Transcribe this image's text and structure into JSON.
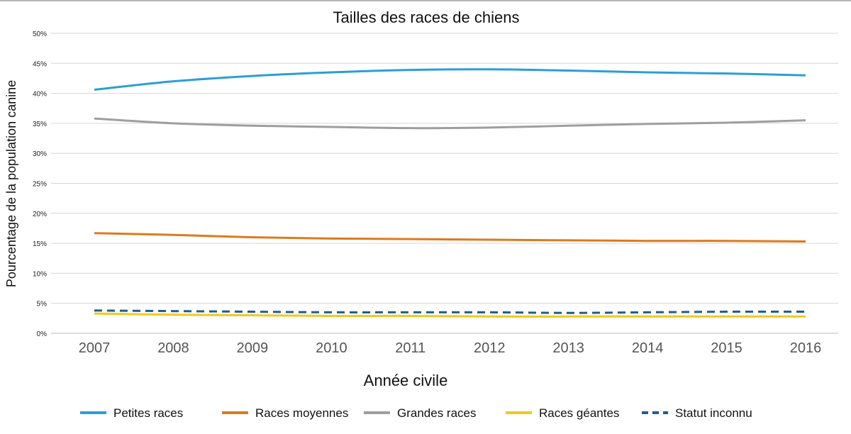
{
  "chart_data": {
    "type": "line",
    "title": "Tailles des races de chiens",
    "xlabel": "Année civile",
    "ylabel": "Pourcentage de la population canine",
    "x": [
      "2007",
      "2008",
      "2009",
      "2010",
      "2011",
      "2012",
      "2013",
      "2014",
      "2015",
      "2016"
    ],
    "ylim": [
      0,
      50
    ],
    "yticks": [
      "0%",
      "5%",
      "10%",
      "15%",
      "20%",
      "25%",
      "30%",
      "35%",
      "40%",
      "45%",
      "50%"
    ],
    "grid": true,
    "legend_position": "bottom",
    "series": [
      {
        "name": "Petites races",
        "color": "#2a9fd6",
        "style": "solid",
        "values": [
          40.6,
          42.0,
          42.9,
          43.5,
          43.9,
          44.0,
          43.8,
          43.5,
          43.3,
          43.0
        ]
      },
      {
        "name": "Races moyennes",
        "color": "#dd7a1c",
        "style": "solid",
        "values": [
          16.7,
          16.4,
          16.0,
          15.8,
          15.7,
          15.6,
          15.5,
          15.4,
          15.4,
          15.3
        ]
      },
      {
        "name": "Grandes races",
        "color": "#9e9e9e",
        "style": "solid",
        "values": [
          35.8,
          35.0,
          34.6,
          34.4,
          34.2,
          34.3,
          34.6,
          34.9,
          35.1,
          35.5
        ]
      },
      {
        "name": "Races géantes",
        "color": "#f2c81c",
        "style": "solid",
        "values": [
          3.3,
          3.1,
          3.0,
          2.9,
          2.9,
          2.8,
          2.8,
          2.8,
          2.8,
          2.8
        ]
      },
      {
        "name": "Statut inconnu",
        "color": "#1b5f8c",
        "style": "dashed",
        "values": [
          3.8,
          3.7,
          3.6,
          3.5,
          3.5,
          3.5,
          3.4,
          3.5,
          3.6,
          3.6
        ]
      }
    ]
  }
}
